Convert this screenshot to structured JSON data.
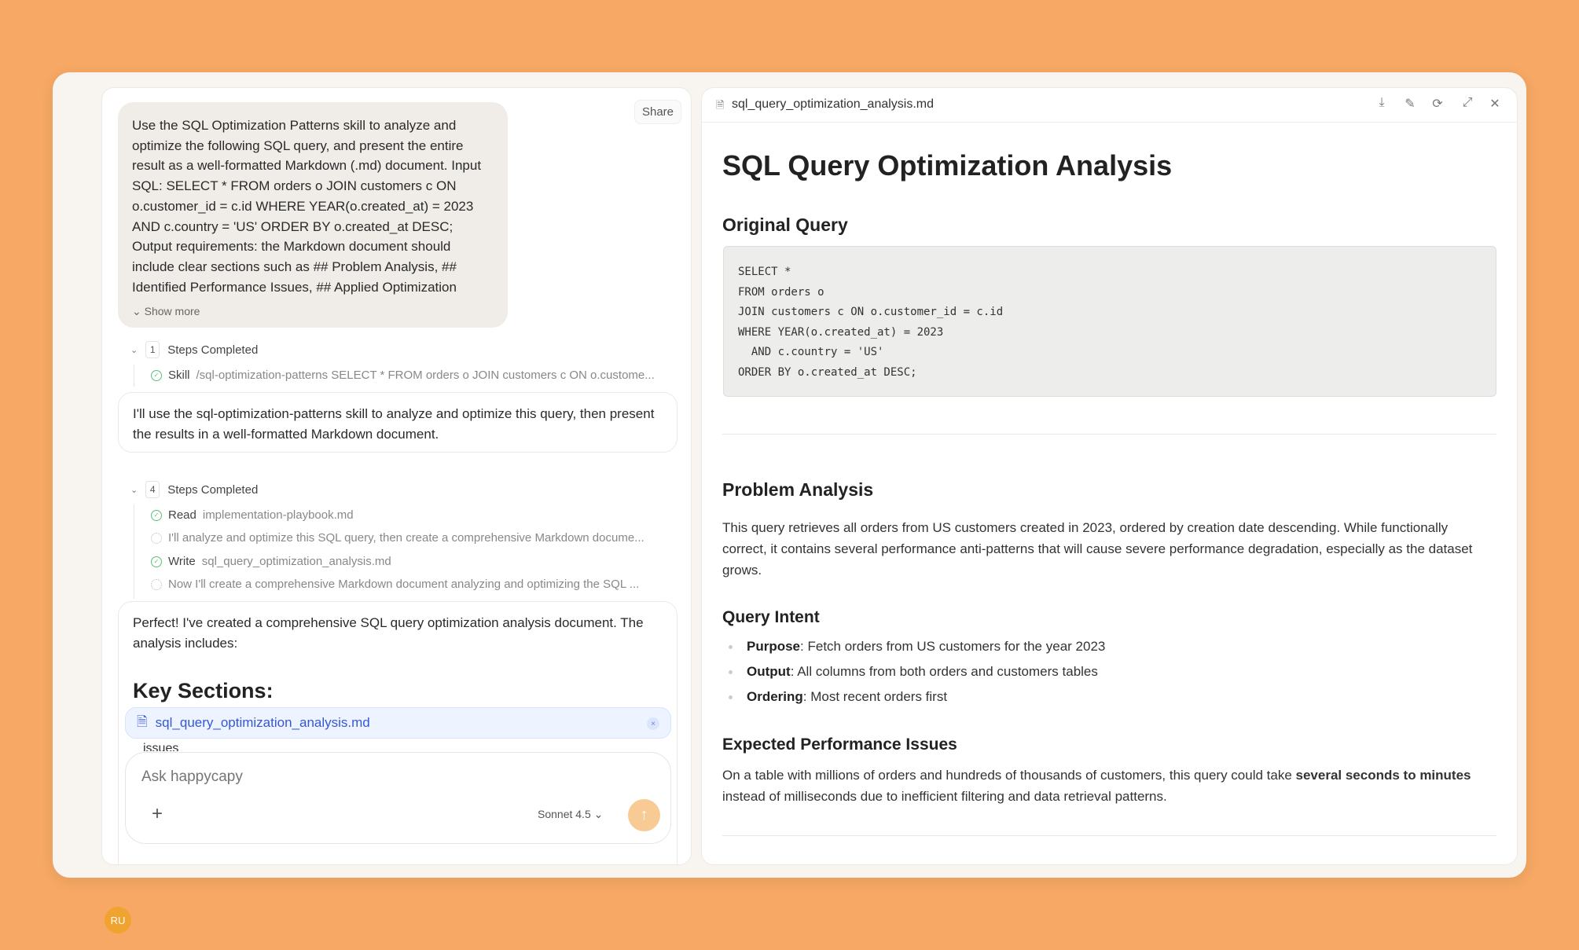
{
  "colors": {
    "background": "#F6A864",
    "accent": "#F0A32E",
    "link": "#3557D6",
    "success": "#5BBF7A"
  },
  "sidebar": {
    "icons": [
      "panel-toggle-icon",
      "home-icon"
    ],
    "avatar": "RU"
  },
  "chat": {
    "share_label": "Share",
    "user_message": "Use the SQL Optimization Patterns skill to analyze and optimize the following SQL query, and present the entire result as a well-formatted Markdown (.md) document. Input SQL: SELECT * FROM orders o JOIN customers c ON o.customer_id = c.id WHERE YEAR(o.created_at) = 2023 AND c.country = 'US' ORDER BY o.created_at DESC; Output requirements: the Markdown document should include clear sections such as ## Problem Analysis, ## Identified Performance Issues, ## Applied Optimization Patterns, and...",
    "show_more": "Show more",
    "steps1": {
      "count": "1",
      "label": "Steps Completed",
      "items": [
        {
          "status": "done",
          "action": "Skill",
          "detail": "/sql-optimization-patterns SELECT * FROM orders o JOIN customers c ON o.custome..."
        }
      ]
    },
    "assistant1": "I'll use the sql-optimization-patterns skill to analyze and optimize this query, then present the results in a well-formatted Markdown document.",
    "steps2": {
      "count": "4",
      "label": "Steps Completed",
      "items": [
        {
          "status": "done",
          "action": "Read",
          "detail": "implementation-playbook.md"
        },
        {
          "status": "pending",
          "action": "",
          "detail": "I'll analyze and optimize this SQL query, then create a comprehensive Markdown docume..."
        },
        {
          "status": "done",
          "action": "Write",
          "detail": "sql_query_optimization_analysis.md"
        },
        {
          "status": "pending",
          "action": "",
          "detail": "Now I'll create a comprehensive Markdown document analyzing and optimizing the SQL ..."
        }
      ]
    },
    "assistant2": "Perfect! I've created a comprehensive SQL query optimization analysis document. The analysis includes:",
    "key_sections": "Key Sections:",
    "file_chip": "sql_query_optimization_analysis.md",
    "issues_fragment": "issues",
    "input_placeholder": "Ask happycapy",
    "model": "Sonnet 4.5"
  },
  "doc": {
    "filename": "sql_query_optimization_analysis.md",
    "header_icons": [
      "download-icon",
      "edit-icon",
      "refresh-icon",
      "expand-icon",
      "close-icon"
    ],
    "title": "SQL Query Optimization Analysis",
    "original_query_heading": "Original Query",
    "code": "SELECT *\nFROM orders o\nJOIN customers c ON o.customer_id = c.id\nWHERE YEAR(o.created_at) = 2023\n  AND c.country = 'US'\nORDER BY o.created_at DESC;",
    "problem_heading": "Problem Analysis",
    "problem_text": "This query retrieves all orders from US customers created in 2023, ordered by creation date descending. While functionally correct, it contains several performance anti-patterns that will cause severe performance degradation, especially as the dataset grows.",
    "intent_heading": "Query Intent",
    "intent_items": [
      {
        "label": "Purpose",
        "text": ": Fetch orders from US customers for the year 2023"
      },
      {
        "label": "Output",
        "text": ": All columns from both orders and customers tables"
      },
      {
        "label": "Ordering",
        "text": ": Most recent orders first"
      }
    ],
    "expected_heading": "Expected Performance Issues",
    "expected_text_a": "On a table with millions of orders and hundreds of thousands of customers, this query could take ",
    "expected_bold": "several seconds to minutes",
    "expected_text_b": " instead of milliseconds due to inefficient filtering and data retrieval patterns."
  }
}
